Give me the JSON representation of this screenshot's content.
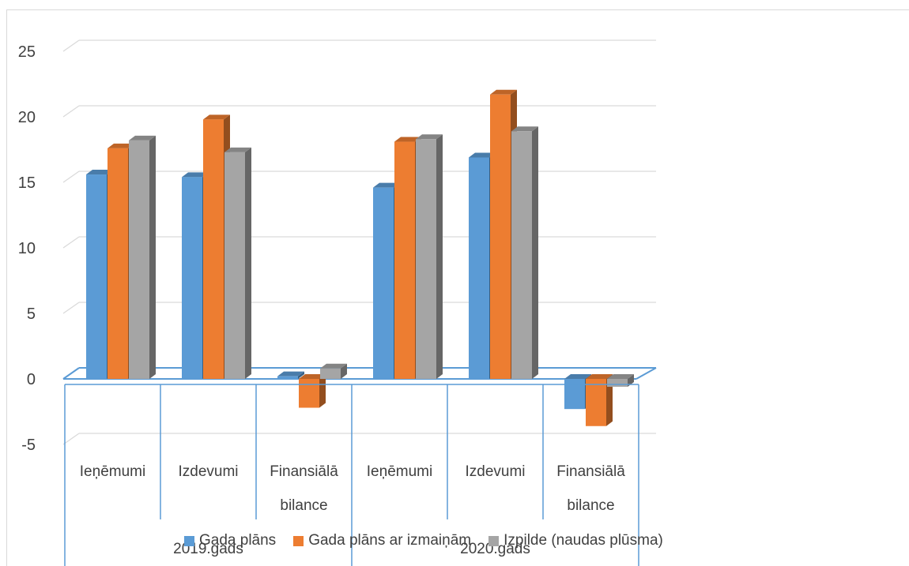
{
  "chart_data": {
    "type": "bar",
    "title": "",
    "xlabel": "",
    "ylabel": "",
    "ylim": [
      -5,
      25
    ],
    "yticks": [
      "25",
      "20",
      "15",
      "10",
      "5",
      "0",
      "-5"
    ],
    "grid": true,
    "groups": [
      {
        "label": "2019.gads",
        "categories": [
          "Ieņēmumi",
          "Izdevumi",
          "Finansiālā bilance"
        ]
      },
      {
        "label": "2020.gads",
        "categories": [
          "Ieņēmumi",
          "Izdevumi",
          "Finansiālā bilance"
        ]
      }
    ],
    "series": [
      {
        "name": "Gada plāns",
        "color": "#5b9bd5",
        "values": [
          15.6,
          15.4,
          0.2,
          14.6,
          16.9,
          -2.3
        ]
      },
      {
        "name": "Gada plāns ar izmaiņām",
        "color": "#ed7d31",
        "values": [
          17.6,
          19.8,
          -2.2,
          18.1,
          21.7,
          -3.6
        ]
      },
      {
        "name": "Izpilde (naudas plūsma)",
        "color": "#a5a5a5",
        "values": [
          18.2,
          17.3,
          0.8,
          18.3,
          18.9,
          -0.6
        ]
      }
    ],
    "legend_position": "bottom"
  }
}
